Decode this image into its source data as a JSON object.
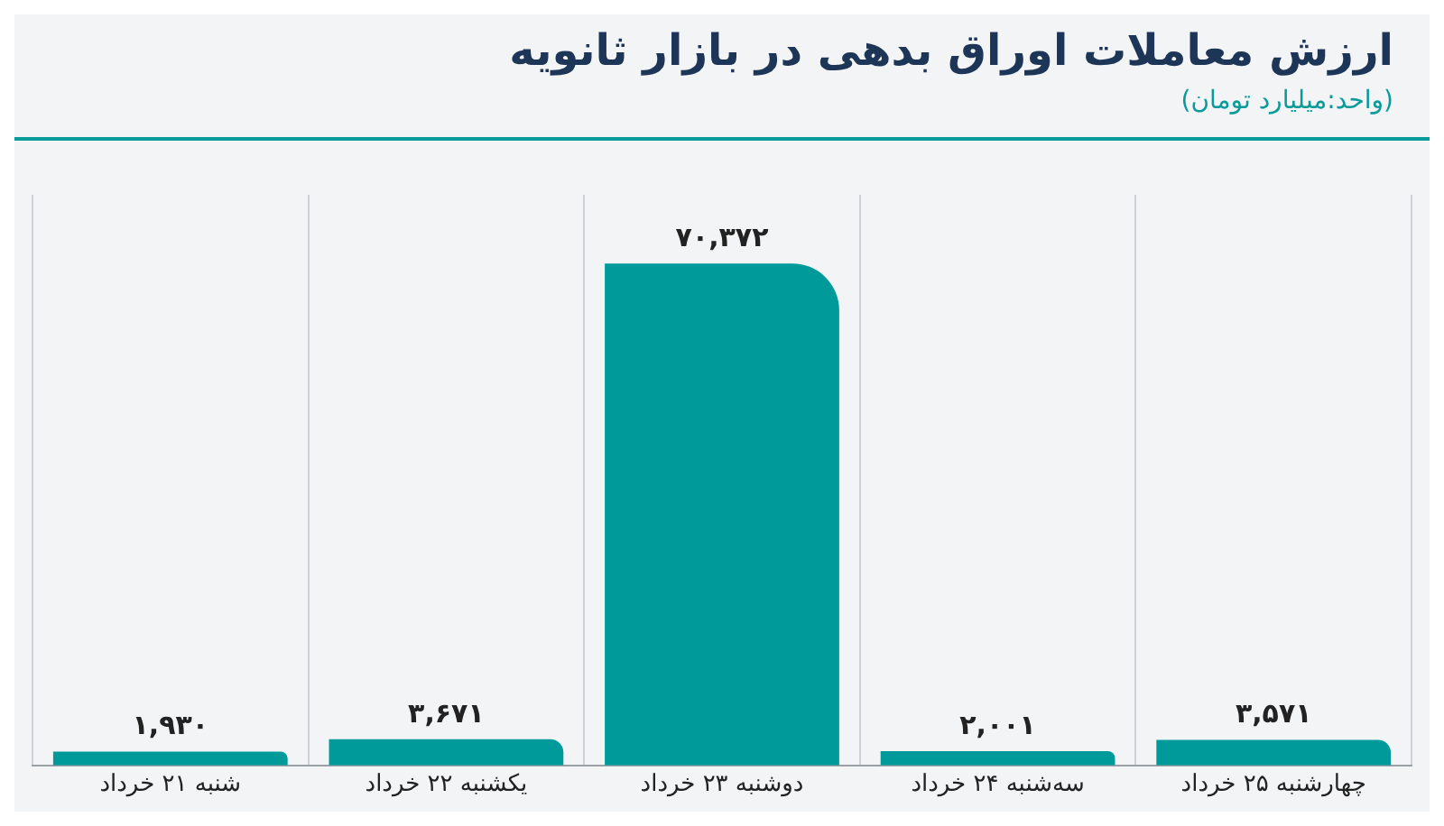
{
  "chart_data": {
    "type": "bar",
    "title": "ارزش معاملات اوراق بدهی در بازار ثانویه",
    "subtitle": "(واحد:میلیارد تومان)",
    "categories": [
      "شنبه ۲۱ خرداد",
      "یکشنبه ۲۲ خرداد",
      "دوشنبه ۲۳ خرداد",
      "سه‌شنبه ۲۴ خرداد",
      "چهارشنبه ۲۵ خرداد"
    ],
    "values": [
      1930,
      3671,
      70372,
      2001,
      3571
    ],
    "value_labels": [
      "۱,۹۳۰",
      "۳,۶۷۱",
      "۷۰,۳۷۲",
      "۲,۰۰۱",
      "۳,۵۷۱"
    ],
    "color": "#009a9a",
    "grid": "x",
    "legend": false
  }
}
